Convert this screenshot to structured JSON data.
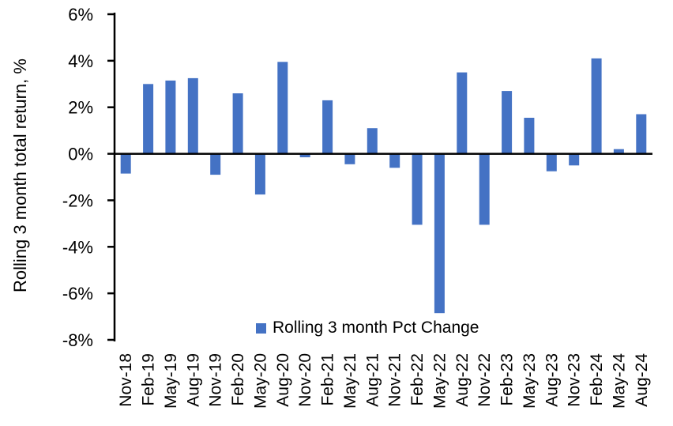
{
  "chart_data": {
    "type": "bar",
    "title": "",
    "xlabel": "",
    "ylabel": "Rolling 3 month total return, %",
    "categories": [
      "Nov-18",
      "Feb-19",
      "May-19",
      "Aug-19",
      "Nov-19",
      "Feb-20",
      "May-20",
      "Aug-20",
      "Nov-20",
      "Feb-21",
      "May-21",
      "Aug-21",
      "Nov-21",
      "Feb-22",
      "May-22",
      "Aug-22",
      "Nov-22",
      "Feb-23",
      "May-23",
      "Aug-23",
      "Nov-23",
      "Feb-24",
      "May-24",
      "Aug-24"
    ],
    "values": [
      -0.85,
      3.0,
      3.15,
      3.25,
      -0.9,
      2.6,
      -1.75,
      3.95,
      -0.15,
      2.3,
      -0.45,
      1.1,
      -0.6,
      -3.05,
      -6.85,
      3.5,
      -3.05,
      2.7,
      1.55,
      -0.75,
      -0.5,
      4.1,
      0.2,
      1.7
    ],
    "ylim": [
      -8,
      6
    ],
    "y_ticks": [
      6,
      4,
      2,
      0,
      -2,
      -4,
      -6,
      -8
    ],
    "y_tick_labels": [
      "6%",
      "4%",
      "2%",
      "0%",
      "-2%",
      "-4%",
      "-6%",
      "-8%"
    ],
    "grid": false,
    "legend_position": "bottom-center",
    "legend_label": "Rolling 3 month Pct Change",
    "bar_color": "#4472C4",
    "axis_color": "#000000",
    "text_color": "#000000"
  }
}
